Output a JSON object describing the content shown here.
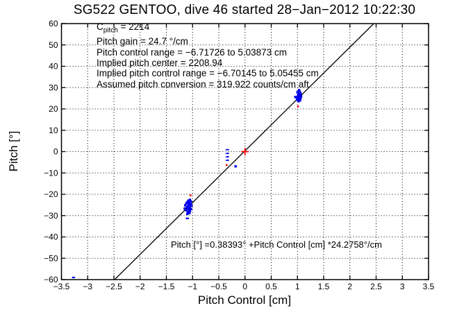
{
  "title": "SG522 GENTOO, dive 46 started 28−Jan−2012 10:22:30",
  "colors": {
    "background": "#ffffff",
    "axis": "#000000",
    "data_blue": "#0000ee",
    "marker_red": "#ff0000"
  },
  "chart_data": {
    "type": "scatter",
    "title": "SG522 GENTOO, dive 46 started 28−Jan−2012 10:22:30",
    "xlabel": "Pitch Control [cm]",
    "ylabel": "Pitch [°]",
    "xlim": [
      -3.5,
      3.5
    ],
    "ylim": [
      -60,
      60
    ],
    "grid": "on-dotted",
    "legend": "none",
    "xticks": [
      -3.5,
      -3,
      -2.5,
      -2,
      -1.5,
      -1,
      -0.5,
      0,
      0.5,
      1,
      1.5,
      2,
      2.5,
      3,
      3.5
    ],
    "xtick_labels": [
      "−3.5",
      "−3",
      "−2.5",
      "−2",
      "−1.5",
      "−1",
      "−0.5",
      "0",
      "0.5",
      "1",
      "1.5",
      "2",
      "2.5",
      "3",
      "3.5"
    ],
    "yticks": [
      -60,
      -50,
      -40,
      -30,
      -20,
      -10,
      0,
      10,
      20,
      30,
      40,
      50,
      60
    ],
    "ytick_labels": [
      "−60",
      "−50",
      "−40",
      "−30",
      "−20",
      "−10",
      "0",
      "10",
      "20",
      "30",
      "40",
      "50",
      "60"
    ],
    "fit_line": {
      "intercept_deg": 0.38393,
      "slope_deg_per_cm": 24.2758,
      "color": "#000000"
    },
    "annotations": {
      "c_pitch_label": "C",
      "c_pitch_sub": "pitch",
      "c_pitch_value": " = 2214",
      "lines": [
        "Pitch gain = 24.7 °/cm",
        "Pitch control range = −6.71726 to 5.03873 cm",
        "Implied pitch center = 2208.94",
        "Implied pitch control range = −6.70145 to 5.05455 cm",
        "Assumed pitch conversion = 319.922 counts/cm aft"
      ],
      "fit_equation": "Pitch [°] =0.38393° +Pitch Control [cm] *24.2758°/cm"
    },
    "series": [
      {
        "name": "observed-pitch-dive-cluster",
        "marker": "square",
        "color": "#0000ee",
        "points": [
          [
            -1.05,
            -22.6
          ],
          [
            -1.08,
            -23.0
          ],
          [
            -1.03,
            -23.4
          ],
          [
            -1.1,
            -23.7
          ],
          [
            -1.06,
            -24.0
          ],
          [
            -1.12,
            -24.3
          ],
          [
            -1.04,
            -24.6
          ],
          [
            -1.08,
            -24.9
          ],
          [
            -1.14,
            -25.2
          ],
          [
            -1.02,
            -25.3
          ],
          [
            -1.07,
            -25.6
          ],
          [
            -1.11,
            -25.9
          ],
          [
            -1.05,
            -26.2
          ],
          [
            -1.09,
            -26.5
          ],
          [
            -1.15,
            -26.7
          ],
          [
            -1.03,
            -26.9
          ],
          [
            -1.07,
            -27.2
          ],
          [
            -1.12,
            -27.5
          ],
          [
            -1.05,
            -27.9
          ],
          [
            -1.09,
            -28.3
          ],
          [
            -1.06,
            -28.8
          ],
          [
            -1.1,
            -29.2
          ]
        ]
      },
      {
        "name": "observed-pitch-climb-cluster",
        "marker": "square",
        "color": "#0000ee",
        "points": [
          [
            1.02,
            23.6
          ],
          [
            1.05,
            24.0
          ],
          [
            0.99,
            24.3
          ],
          [
            1.03,
            24.7
          ],
          [
            1.06,
            25.0
          ],
          [
            1.0,
            25.3
          ],
          [
            1.04,
            25.6
          ],
          [
            1.07,
            25.9
          ],
          [
            1.01,
            26.2
          ],
          [
            0.96,
            25.6
          ],
          [
            1.05,
            26.6
          ],
          [
            1.02,
            27.0
          ],
          [
            1.06,
            27.4
          ],
          [
            1.0,
            27.8
          ],
          [
            1.04,
            28.3
          ],
          [
            1.03,
            28.8
          ]
        ]
      },
      {
        "name": "observed-pitch-isolated-points",
        "marker": "square",
        "color": "#0000ee",
        "points": [
          [
            -0.18,
            -6.9
          ]
        ]
      },
      {
        "name": "small-blue-marks",
        "marker": "dash",
        "color": "#0000ee",
        "points": [
          [
            -3.27,
            -59.0
          ],
          [
            -1.1,
            -31.3
          ]
        ]
      },
      {
        "name": "red-dots",
        "marker": "dot",
        "color": "#ff0000",
        "points": [
          [
            -1.04,
            -20.5
          ],
          [
            1.01,
            21.2
          ],
          [
            -0.35,
            -6.3
          ]
        ]
      },
      {
        "name": "implied-center-cross",
        "marker": "plus",
        "color": "#ff0000",
        "points": [
          [
            0,
            0
          ]
        ]
      }
    ],
    "dashed_segment": {
      "x": -0.33,
      "y_from": 1.2,
      "y_to": -5.3,
      "tick_ys": [
        0.9,
        -0.9,
        -2.5,
        -4.1
      ],
      "color": "#0000ee"
    }
  }
}
